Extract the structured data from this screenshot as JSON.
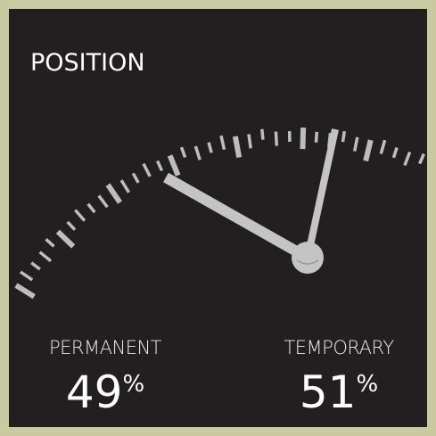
{
  "title": "POSITION",
  "items": [
    {
      "label": "PERMANENT",
      "value": 49,
      "unit": "%"
    },
    {
      "label": "TEMPORARY",
      "value": 51,
      "unit": "%"
    }
  ]
}
